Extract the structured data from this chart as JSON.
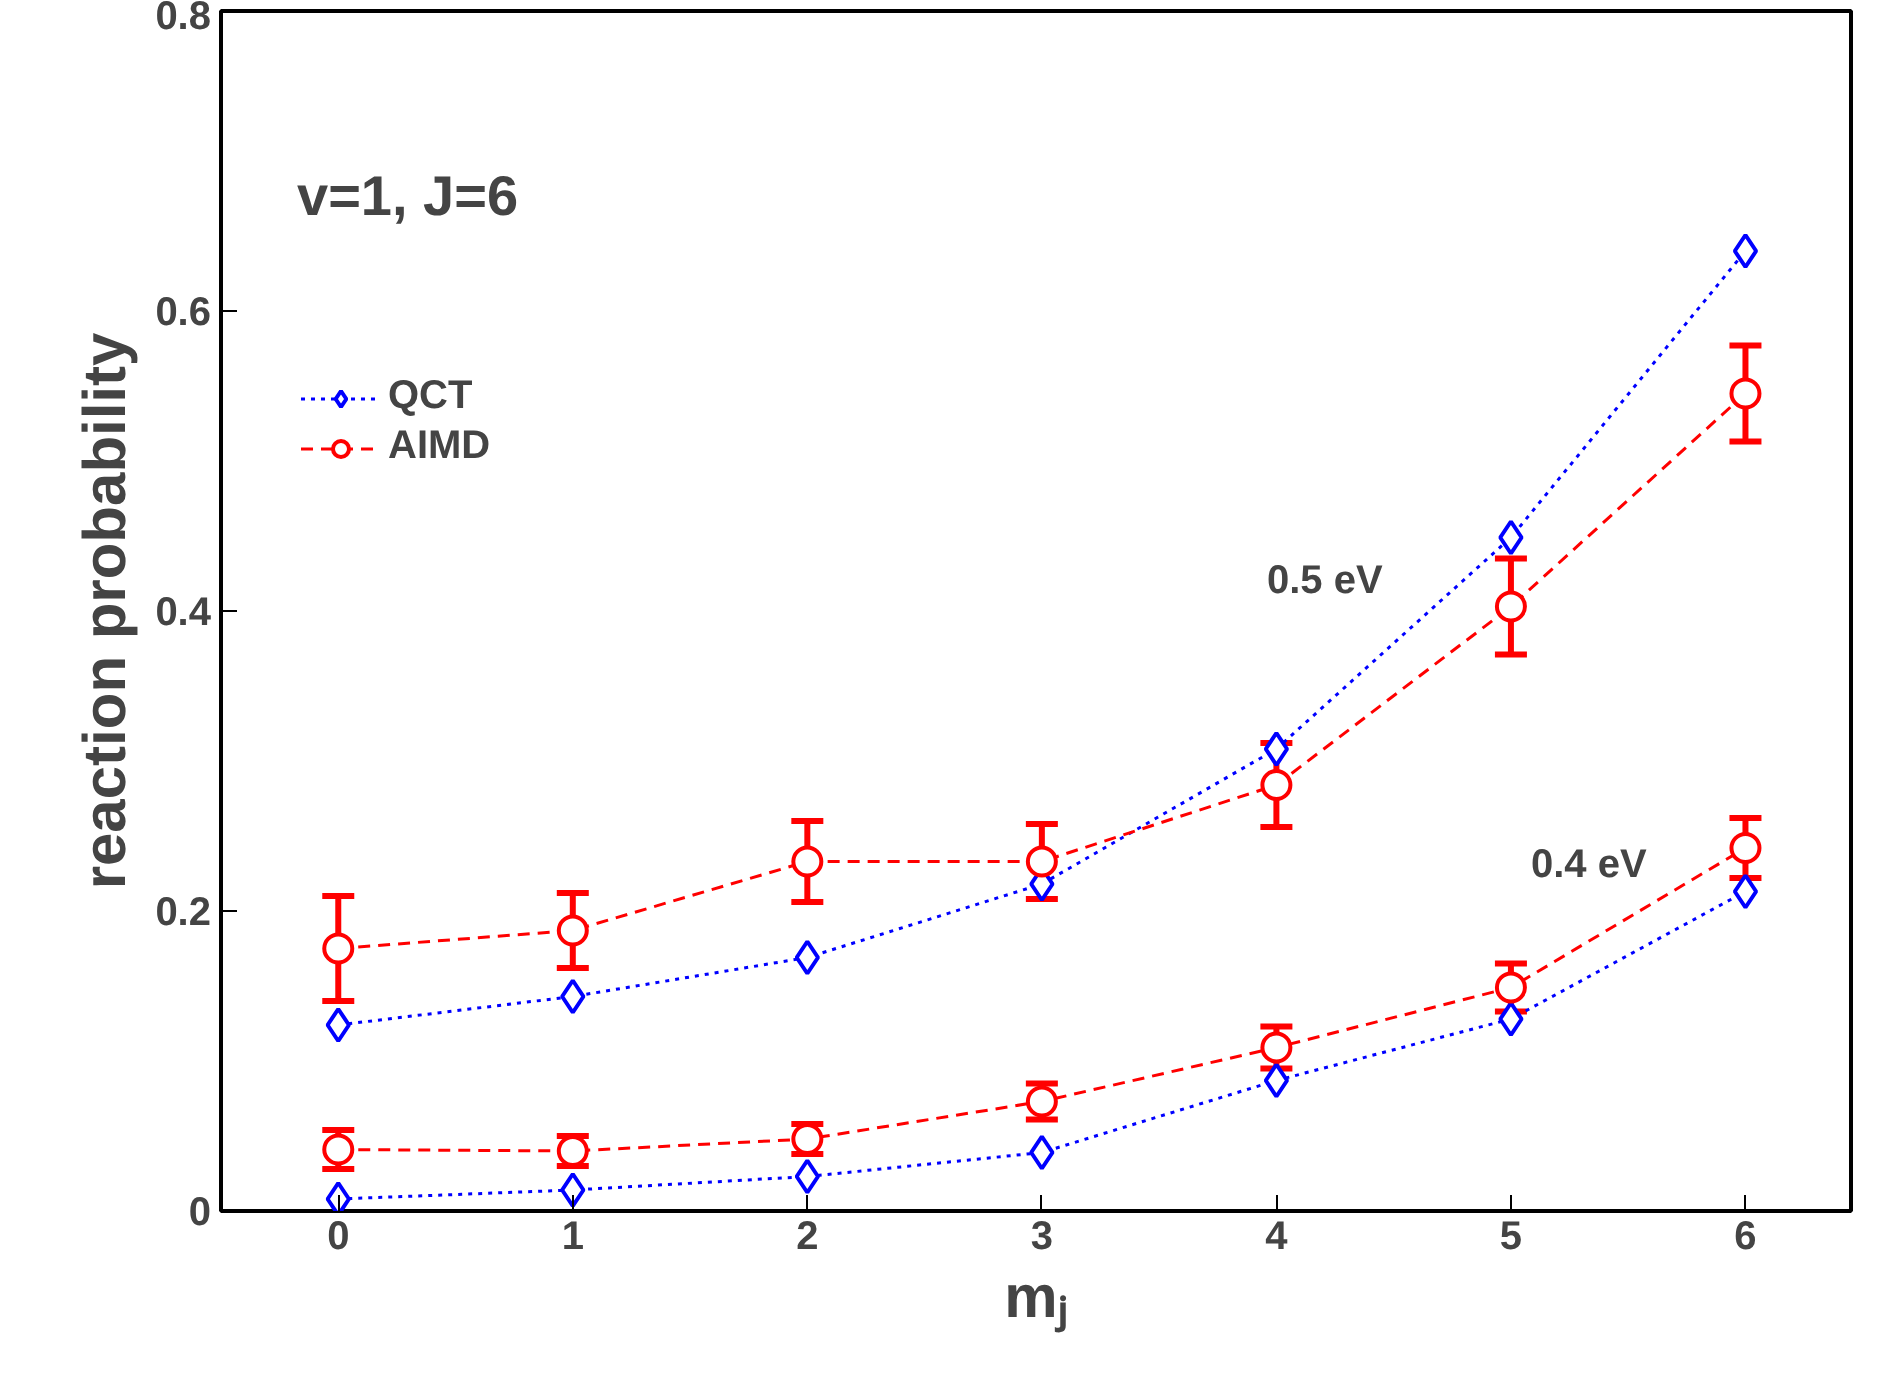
{
  "chart_data": {
    "type": "line",
    "xlabel": "mⱼ",
    "ylabel": "reaction probability",
    "xlim": [
      -0.5,
      6.45
    ],
    "xticks": [
      0,
      1,
      2,
      3,
      4,
      5,
      6
    ],
    "ylim": [
      0,
      0.8
    ],
    "yticks": [
      0,
      0.2,
      0.4,
      0.6,
      0.8
    ],
    "grid": false,
    "legend": "top left",
    "x": [
      0,
      1,
      2,
      3,
      4,
      5,
      6
    ],
    "series": [
      {
        "name": "QCT",
        "color": "#0000ff",
        "marker": "diamond",
        "line_style": "dotted",
        "values": [
          0.124,
          0.143,
          0.169,
          0.218,
          0.308,
          0.449,
          0.64
        ]
      },
      {
        "name": "AIMD",
        "color": "#ff0000",
        "marker": "circle",
        "line_style": "dashed",
        "values": [
          0.175,
          0.187,
          0.233,
          0.233,
          0.284,
          0.403,
          0.545
        ],
        "errors": [
          0.035,
          0.025,
          0.027,
          0.025,
          0.028,
          0.032,
          0.032
        ]
      },
      {
        "color": "#0000ff",
        "marker": "diamond",
        "line_style": "dotted",
        "values": [
          0.008,
          0.014,
          0.023,
          0.039,
          0.087,
          0.128,
          0.213
        ]
      },
      {
        "color": "#ff0000",
        "marker": "circle",
        "line_style": "dashed",
        "values": [
          0.041,
          0.04,
          0.048,
          0.073,
          0.109,
          0.149,
          0.242
        ],
        "errors": [
          0.013,
          0.01,
          0.01,
          0.012,
          0.014,
          0.016,
          0.02
        ]
      }
    ],
    "annotations": [
      "v=1, J=6",
      "0.5 eV",
      "0.4 eV"
    ]
  }
}
